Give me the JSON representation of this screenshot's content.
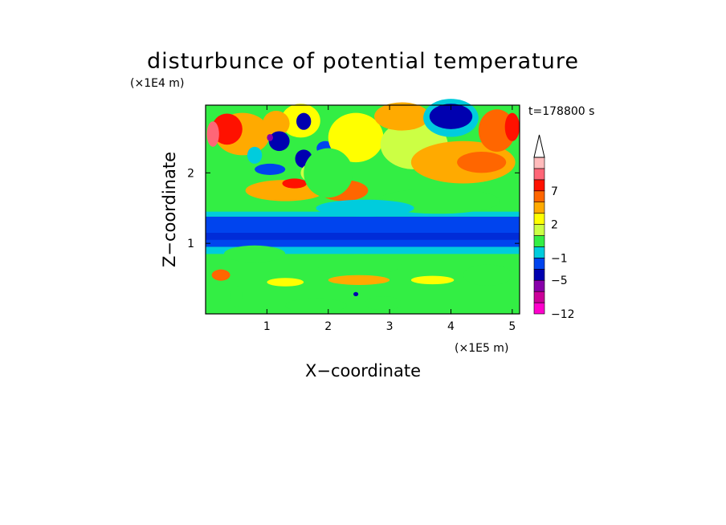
{
  "chart_data": {
    "type": "heatmap",
    "title": "disturbunce of potential temperature",
    "xlabel": "X−coordinate",
    "ylabel": "Z−coordinate",
    "x_unit": "(×1E5 m)",
    "y_unit": "(×1E4 m)",
    "time_label": "t=178800 s",
    "xlim": [
      0,
      5.12
    ],
    "ylim": [
      0,
      2.96
    ],
    "x_ticks": [
      "1",
      "2",
      "3",
      "4",
      "5"
    ],
    "y_ticks": [
      "1",
      "2"
    ],
    "colorbar": {
      "levels": [
        -12,
        -9,
        -7,
        -5,
        -3,
        -1,
        0,
        1,
        2,
        3,
        5,
        7,
        9
      ],
      "colors": [
        "#ff00cc",
        "#cc0099",
        "#8800aa",
        "#0000b0",
        "#0044ee",
        "#00ccdd",
        "#33ee44",
        "#ccff44",
        "#ffff00",
        "#ffaa00",
        "#ff6600",
        "#ff1100",
        "#ff6677",
        "#ffbbbb"
      ],
      "tick_labels": [
        "7",
        "2",
        "−1",
        "−5",
        "−12"
      ],
      "extend": "max"
    },
    "blobs": [
      {
        "x": 1.55,
        "z": 2.74,
        "rx": 0.32,
        "rz": 0.24,
        "v": 1.5
      },
      {
        "x": 0.6,
        "z": 2.55,
        "rx": 0.45,
        "rz": 0.3,
        "v": 2.5
      },
      {
        "x": 0.35,
        "z": 2.62,
        "rx": 0.25,
        "rz": 0.22,
        "v": 5.5
      },
      {
        "x": 0.12,
        "z": 2.55,
        "rx": 0.1,
        "rz": 0.18,
        "v": 8.5
      },
      {
        "x": 1.15,
        "z": 2.7,
        "rx": 0.22,
        "rz": 0.18,
        "v": 2.5
      },
      {
        "x": 1.2,
        "z": 2.45,
        "rx": 0.17,
        "rz": 0.14,
        "v": -6
      },
      {
        "x": 1.05,
        "z": 2.5,
        "rx": 0.05,
        "rz": 0.05,
        "v": -8
      },
      {
        "x": 1.6,
        "z": 2.73,
        "rx": 0.12,
        "rz": 0.12,
        "v": -6
      },
      {
        "x": 1.6,
        "z": 2.2,
        "rx": 0.14,
        "rz": 0.13,
        "v": -6
      },
      {
        "x": 1.95,
        "z": 2.35,
        "rx": 0.14,
        "rz": 0.1,
        "v": -5
      },
      {
        "x": 1.05,
        "z": 2.05,
        "rx": 0.25,
        "rz": 0.08,
        "v": -5
      },
      {
        "x": 0.8,
        "z": 2.25,
        "rx": 0.12,
        "rz": 0.12,
        "v": -2
      },
      {
        "x": 1.8,
        "z": 2.0,
        "rx": 0.25,
        "rz": 0.15,
        "v": 0.5
      },
      {
        "x": 1.3,
        "z": 1.75,
        "rx": 0.65,
        "rz": 0.15,
        "v": 2.5
      },
      {
        "x": 1.45,
        "z": 1.85,
        "rx": 0.2,
        "rz": 0.07,
        "v": 6
      },
      {
        "x": 2.25,
        "z": 1.75,
        "rx": 0.4,
        "rz": 0.15,
        "v": 3
      },
      {
        "x": 2.45,
        "z": 2.5,
        "rx": 0.45,
        "rz": 0.35,
        "v": 1.5
      },
      {
        "x": 2.0,
        "z": 2.0,
        "rx": 0.4,
        "rz": 0.35,
        "v": -0.5
      },
      {
        "x": 3.4,
        "z": 2.4,
        "rx": 0.55,
        "rz": 0.35,
        "v": 0.8
      },
      {
        "x": 3.2,
        "z": 2.8,
        "rx": 0.45,
        "rz": 0.2,
        "v": 2.5
      },
      {
        "x": 4.0,
        "z": 2.78,
        "rx": 0.45,
        "rz": 0.27,
        "v": -2.5
      },
      {
        "x": 4.0,
        "z": 2.8,
        "rx": 0.35,
        "rz": 0.18,
        "v": -6
      },
      {
        "x": 4.2,
        "z": 2.15,
        "rx": 0.85,
        "rz": 0.3,
        "v": 2.5
      },
      {
        "x": 4.5,
        "z": 2.15,
        "rx": 0.4,
        "rz": 0.15,
        "v": 3.2
      },
      {
        "x": 4.75,
        "z": 2.6,
        "rx": 0.3,
        "rz": 0.3,
        "v": 3
      },
      {
        "x": 5.0,
        "z": 2.65,
        "rx": 0.12,
        "rz": 0.2,
        "v": 5.5
      },
      {
        "x": 3.8,
        "z": 1.6,
        "rx": 1.0,
        "rz": 0.18,
        "v": -0.5
      },
      {
        "x": 2.6,
        "z": 1.5,
        "rx": 0.8,
        "rz": 0.12,
        "v": -1.5
      },
      {
        "x": 0.8,
        "z": 0.85,
        "rx": 0.5,
        "rz": 0.12,
        "v": -0.8
      },
      {
        "x": 2.5,
        "z": 0.7,
        "rx": 0.7,
        "rz": 0.15,
        "v": -0.5
      },
      {
        "x": 4.6,
        "z": 0.55,
        "rx": 0.4,
        "rz": 0.15,
        "v": -0.5
      },
      {
        "x": 2.5,
        "z": 0.48,
        "rx": 0.5,
        "rz": 0.07,
        "v": 2.2
      },
      {
        "x": 1.3,
        "z": 0.45,
        "rx": 0.3,
        "rz": 0.06,
        "v": 1.5
      },
      {
        "x": 3.7,
        "z": 0.48,
        "rx": 0.35,
        "rz": 0.06,
        "v": 1.5
      },
      {
        "x": 0.25,
        "z": 0.55,
        "rx": 0.15,
        "rz": 0.08,
        "v": 3
      },
      {
        "x": 1.8,
        "z": 0.12,
        "rx": 0.5,
        "rz": 0.1,
        "v": -0.8
      },
      {
        "x": 2.9,
        "z": 0.15,
        "rx": 0.3,
        "rz": 0.1,
        "v": -1
      },
      {
        "x": 0.5,
        "z": 0.25,
        "rx": 0.1,
        "rz": 0.15,
        "v": -1
      },
      {
        "x": 2.45,
        "z": 0.28,
        "rx": 0.04,
        "rz": 0.03,
        "v": -6
      }
    ]
  }
}
